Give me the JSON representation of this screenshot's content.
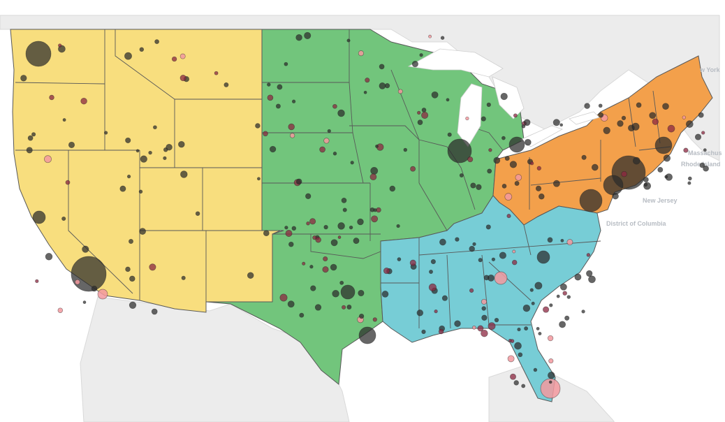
{
  "map": {
    "colors": {
      "background": "#ffffff",
      "land_outside": "#e8e8e8",
      "land_border": "#d2d2d2",
      "water": "#ffffff",
      "west": "#f8de7e",
      "central": "#72c57c",
      "east": "#f3a04b",
      "south": "#77cdd6",
      "state_border": "#585858",
      "marker_dark": "#2b2b2b",
      "marker_red": "#8c2740",
      "marker_pink": "#f3999f"
    },
    "labels": {
      "massachusetts": "Massachus",
      "rhode_island": "Rhode Island",
      "new_jersey": "New Jersey",
      "district_of_columbia": "District of Columbia",
      "new_york_partial": "w York"
    }
  }
}
